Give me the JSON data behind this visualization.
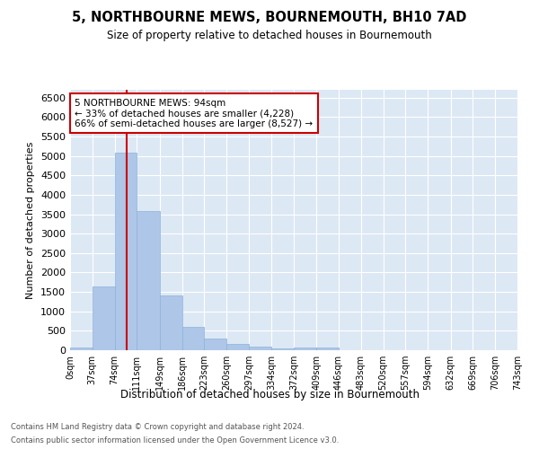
{
  "title": "5, NORTHBOURNE MEWS, BOURNEMOUTH, BH10 7AD",
  "subtitle": "Size of property relative to detached houses in Bournemouth",
  "xlabel": "Distribution of detached houses by size in Bournemouth",
  "ylabel": "Number of detached properties",
  "bar_color": "#aec6e8",
  "bar_edge_color": "#8ab4d8",
  "fig_bg_color": "#ffffff",
  "ax_bg_color": "#dde8f5",
  "grid_color": "#ffffff",
  "vline_x": 94,
  "vline_color": "#cc0000",
  "bin_edges": [
    0,
    37,
    74,
    111,
    149,
    186,
    223,
    260,
    297,
    334,
    372,
    409,
    446,
    483,
    520,
    557,
    594,
    632,
    669,
    706,
    743
  ],
  "bar_heights": [
    75,
    1630,
    5080,
    3590,
    1400,
    610,
    300,
    155,
    90,
    55,
    60,
    60,
    0,
    0,
    0,
    0,
    0,
    0,
    0,
    0
  ],
  "annotation_text": "5 NORTHBOURNE MEWS: 94sqm\n← 33% of detached houses are smaller (4,228)\n66% of semi-detached houses are larger (8,527) →",
  "annotation_box_color": "#ffffff",
  "annotation_border_color": "#cc0000",
  "footer_line1": "Contains HM Land Registry data © Crown copyright and database right 2024.",
  "footer_line2": "Contains public sector information licensed under the Open Government Licence v3.0.",
  "xlim": [
    0,
    743
  ],
  "ylim": [
    0,
    6700
  ],
  "yticks": [
    0,
    500,
    1000,
    1500,
    2000,
    2500,
    3000,
    3500,
    4000,
    4500,
    5000,
    5500,
    6000,
    6500
  ],
  "xtick_labels": [
    "0sqm",
    "37sqm",
    "74sqm",
    "111sqm",
    "149sqm",
    "186sqm",
    "223sqm",
    "260sqm",
    "297sqm",
    "334sqm",
    "372sqm",
    "409sqm",
    "446sqm",
    "483sqm",
    "520sqm",
    "557sqm",
    "594sqm",
    "632sqm",
    "669sqm",
    "706sqm",
    "743sqm"
  ]
}
